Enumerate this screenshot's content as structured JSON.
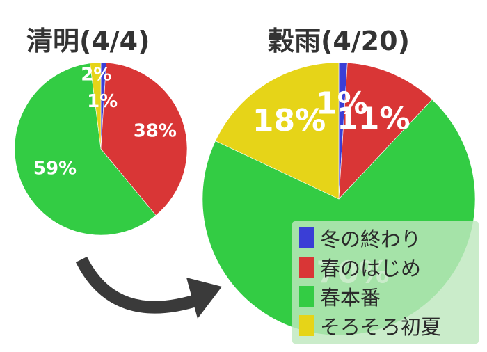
{
  "colors": {
    "winter_end": "#3a3ed6",
    "early_spring": "#d93636",
    "full_spring": "#33cc44",
    "early_summer": "#e6d418",
    "arrow": "#3a3a3a",
    "title": "#333333"
  },
  "legend": [
    {
      "label": "冬の終わり",
      "color": "#3a3ed6"
    },
    {
      "label": "春のはじめ",
      "color": "#d93636"
    },
    {
      "label": "春本番",
      "color": "#33cc44"
    },
    {
      "label": "そろそろ初夏",
      "color": "#e6d418"
    }
  ],
  "chart_data": [
    {
      "type": "pie",
      "title": "清明(4/4)",
      "labels": [
        "冬の終わり",
        "春のはじめ",
        "春本番",
        "そろそろ初夏"
      ],
      "values": [
        1,
        38,
        59,
        2
      ],
      "value_labels": [
        "1%",
        "38%",
        "59%",
        "2%"
      ],
      "start": "top (12 o'clock)",
      "direction": "clockwise"
    },
    {
      "type": "pie",
      "title": "穀雨(4/20)",
      "labels": [
        "冬の終わり",
        "春のはじめ",
        "春本番",
        "そろそろ初夏"
      ],
      "values": [
        1,
        11,
        70,
        18
      ],
      "value_labels": [
        "1%",
        "11%",
        "70%",
        "18%"
      ],
      "start": "top (12 o'clock)",
      "direction": "clockwise"
    }
  ]
}
